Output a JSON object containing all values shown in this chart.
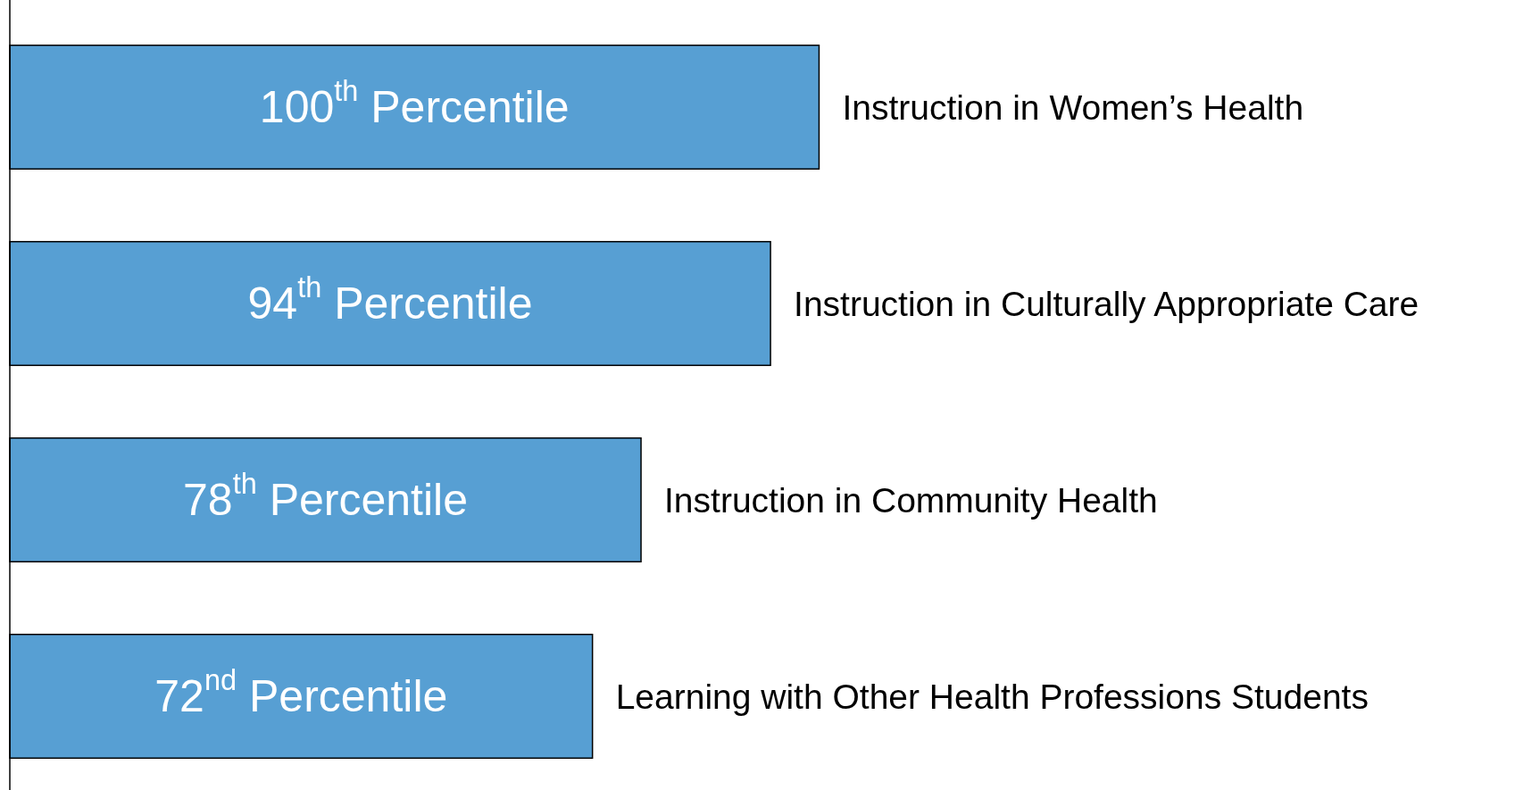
{
  "chart_data": {
    "type": "bar",
    "orientation": "horizontal",
    "categories": [
      "Instruction in Women’s Health",
      "Instruction in Culturally Appropriate Care",
      "Instruction in Community Health",
      "Learning with Other Health Professions Students"
    ],
    "values": [
      100,
      94,
      78,
      72
    ],
    "value_labels": [
      "100$^{th}$ Percentile",
      "94$^{th}$ Percentile",
      "78$^{th}$ Percentile",
      "72$^{nd}$ Percentile"
    ],
    "color": "#579fd3",
    "xlim": [
      0,
      186
    ]
  }
}
